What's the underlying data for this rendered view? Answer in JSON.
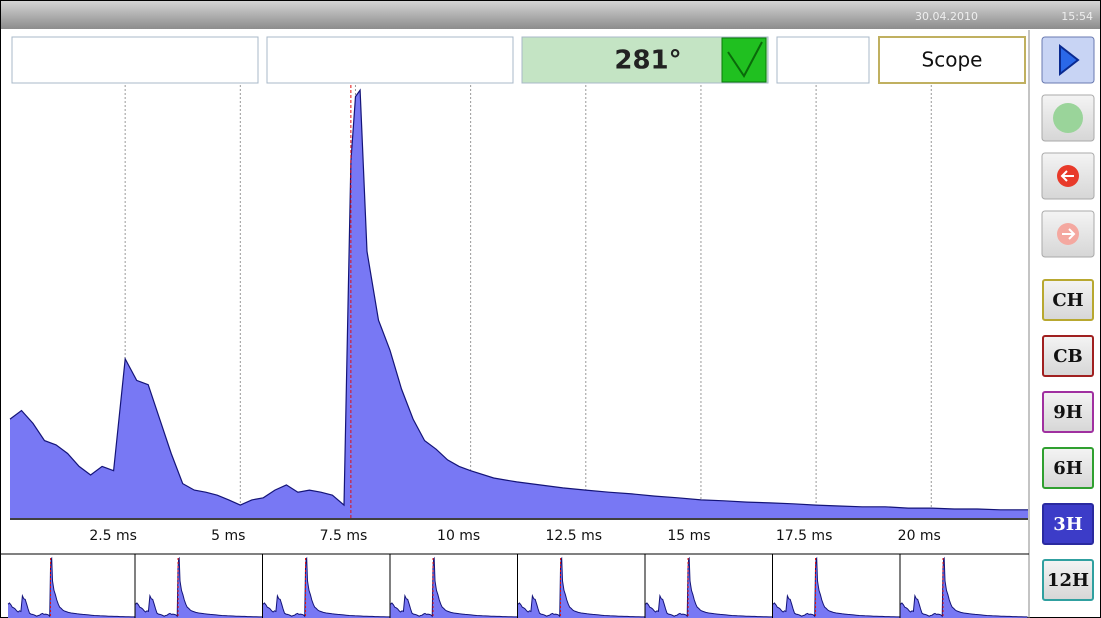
{
  "status_bar": {
    "date": "30.04.2010",
    "time": "15:54"
  },
  "header": {
    "angle": "281°",
    "mode": "Scope"
  },
  "buttons": [
    "CH",
    "CB",
    "9H",
    "6H",
    "3H",
    "12H"
  ],
  "chart_data": {
    "type": "area",
    "x": [
      0,
      0.25,
      0.5,
      0.75,
      1.0,
      1.25,
      1.5,
      1.75,
      2.0,
      2.25,
      2.5,
      2.75,
      3.0,
      3.25,
      3.5,
      3.75,
      4.0,
      4.25,
      4.5,
      4.75,
      5.0,
      5.25,
      5.5,
      5.75,
      6.0,
      6.25,
      6.5,
      6.75,
      7.0,
      7.25,
      7.4,
      7.5,
      7.6,
      7.75,
      8.0,
      8.25,
      8.5,
      8.75,
      9.0,
      9.25,
      9.5,
      9.75,
      10,
      10.5,
      11,
      11.5,
      12,
      12.5,
      13,
      13.5,
      14,
      14.5,
      15,
      15.5,
      16,
      16.5,
      17,
      17.5,
      18,
      18.5,
      19,
      19.5,
      20,
      20.5,
      21,
      21.5,
      22.1
    ],
    "values": [
      23,
      25,
      22,
      18,
      17,
      15,
      12,
      10,
      12,
      11,
      37,
      32,
      31,
      23,
      15,
      8,
      6.5,
      6,
      5.3,
      4.2,
      3,
      4.2,
      4.7,
      6.5,
      7.7,
      6,
      6.5,
      6,
      5.3,
      3,
      83,
      98,
      99.5,
      62,
      46,
      39,
      30,
      23,
      18,
      16,
      13.5,
      12,
      11,
      9.3,
      8.4,
      7.7,
      7,
      6.5,
      6,
      5.6,
      5.1,
      4.7,
      4.2,
      4,
      3.7,
      3.5,
      3.3,
      3,
      2.8,
      2.6,
      2.6,
      2.3,
      2.3,
      2.1,
      2.1,
      1.9,
      1.9
    ],
    "xlim": [
      0,
      22.1
    ],
    "ylim": [
      0,
      100
    ],
    "xticks": [
      {
        "value": 2.5,
        "label": "2.5 ms"
      },
      {
        "value": 5,
        "label": "5 ms"
      },
      {
        "value": 7.5,
        "label": "7.5 ms"
      },
      {
        "value": 10,
        "label": "10 ms"
      },
      {
        "value": 12.5,
        "label": "12.5 ms"
      },
      {
        "value": 15,
        "label": "15 ms"
      },
      {
        "value": 17.5,
        "label": "17.5 ms"
      },
      {
        "value": 20,
        "label": "20 ms"
      }
    ],
    "cursor_x": 7.4,
    "color": "#7878f4",
    "line_color": "#141478",
    "grid": true
  }
}
